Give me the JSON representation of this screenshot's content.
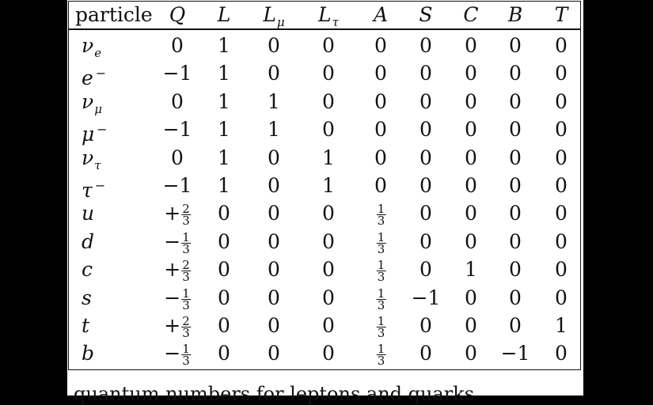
{
  "table": {
    "headers": [
      {
        "main": "particle",
        "italic": false
      },
      {
        "main": "Q",
        "italic": true
      },
      {
        "main": "L",
        "italic": true
      },
      {
        "main": "L",
        "sub": "μ",
        "italic": true
      },
      {
        "main": "L",
        "sub": "τ",
        "italic": true
      },
      {
        "main": "A",
        "italic": true
      },
      {
        "main": "S",
        "italic": true
      },
      {
        "main": "C",
        "italic": true
      },
      {
        "main": "B",
        "italic": true
      },
      {
        "main": "T",
        "italic": true
      }
    ],
    "rows": [
      {
        "particle": {
          "main": "ν",
          "sub": "e"
        },
        "Q": "0",
        "L": "1",
        "Lmu": "0",
        "Ltau": "0",
        "A": "0",
        "S": "0",
        "C": "0",
        "B": "0",
        "T": "0"
      },
      {
        "particle": {
          "main": "e",
          "sup": "−"
        },
        "Q": "−1",
        "L": "1",
        "Lmu": "0",
        "Ltau": "0",
        "A": "0",
        "S": "0",
        "C": "0",
        "B": "0",
        "T": "0"
      },
      {
        "particle": {
          "main": "ν",
          "sub": "μ"
        },
        "Q": "0",
        "L": "1",
        "Lmu": "1",
        "Ltau": "0",
        "A": "0",
        "S": "0",
        "C": "0",
        "B": "0",
        "T": "0"
      },
      {
        "particle": {
          "main": "μ",
          "sup": "−"
        },
        "Q": "−1",
        "L": "1",
        "Lmu": "1",
        "Ltau": "0",
        "A": "0",
        "S": "0",
        "C": "0",
        "B": "0",
        "T": "0"
      },
      {
        "particle": {
          "main": "ν",
          "sub": "τ"
        },
        "Q": "0",
        "L": "1",
        "Lmu": "0",
        "Ltau": "1",
        "A": "0",
        "S": "0",
        "C": "0",
        "B": "0",
        "T": "0"
      },
      {
        "particle": {
          "main": "τ",
          "sup": "−"
        },
        "Q": "−1",
        "L": "1",
        "Lmu": "0",
        "Ltau": "1",
        "A": "0",
        "S": "0",
        "C": "0",
        "B": "0",
        "T": "0"
      },
      {
        "particle": {
          "main": "u"
        },
        "Q": {
          "sign": "+",
          "num": "2",
          "den": "3"
        },
        "L": "0",
        "Lmu": "0",
        "Ltau": "0",
        "A": {
          "sign": "",
          "num": "1",
          "den": "3"
        },
        "S": "0",
        "C": "0",
        "B": "0",
        "T": "0"
      },
      {
        "particle": {
          "main": "d"
        },
        "Q": {
          "sign": "−",
          "num": "1",
          "den": "3"
        },
        "L": "0",
        "Lmu": "0",
        "Ltau": "0",
        "A": {
          "sign": "",
          "num": "1",
          "den": "3"
        },
        "S": "0",
        "C": "0",
        "B": "0",
        "T": "0"
      },
      {
        "particle": {
          "main": "c"
        },
        "Q": {
          "sign": "+",
          "num": "2",
          "den": "3"
        },
        "L": "0",
        "Lmu": "0",
        "Ltau": "0",
        "A": {
          "sign": "",
          "num": "1",
          "den": "3"
        },
        "S": "0",
        "C": "1",
        "B": "0",
        "T": "0"
      },
      {
        "particle": {
          "main": "s"
        },
        "Q": {
          "sign": "−",
          "num": "1",
          "den": "3"
        },
        "L": "0",
        "Lmu": "0",
        "Ltau": "0",
        "A": {
          "sign": "",
          "num": "1",
          "den": "3"
        },
        "S": "−1",
        "C": "0",
        "B": "0",
        "T": "0"
      },
      {
        "particle": {
          "main": "t"
        },
        "Q": {
          "sign": "+",
          "num": "2",
          "den": "3"
        },
        "L": "0",
        "Lmu": "0",
        "Ltau": "0",
        "A": {
          "sign": "",
          "num": "1",
          "den": "3"
        },
        "S": "0",
        "C": "0",
        "B": "0",
        "T": "1"
      },
      {
        "particle": {
          "main": "b"
        },
        "Q": {
          "sign": "−",
          "num": "1",
          "den": "3"
        },
        "L": "0",
        "Lmu": "0",
        "Ltau": "0",
        "A": {
          "sign": "",
          "num": "1",
          "den": "3"
        },
        "S": "0",
        "C": "0",
        "B": "−1",
        "T": "0"
      }
    ]
  },
  "caption": "quantum numbers for leptons and quarks"
}
